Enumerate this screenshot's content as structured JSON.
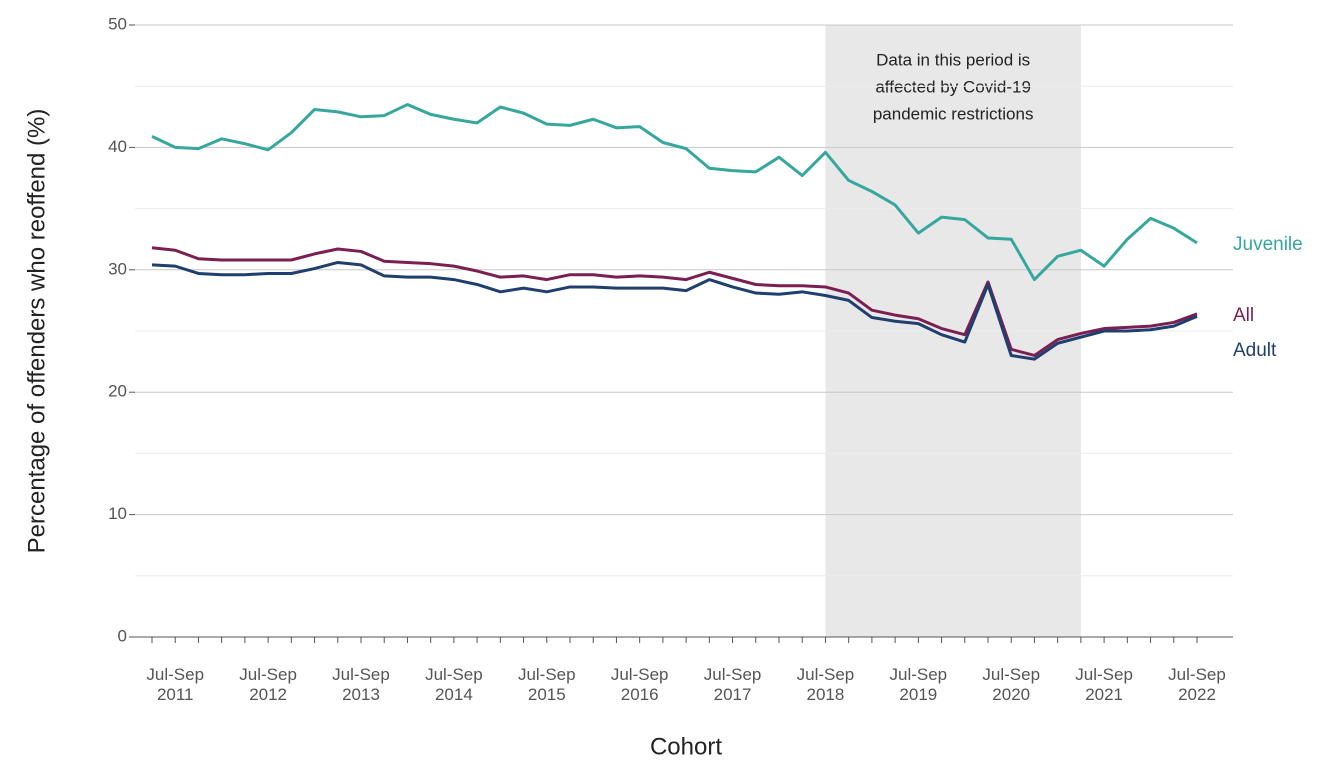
{
  "chart_data": {
    "type": "line",
    "categories": [
      null,
      "Jul-Sep 2011",
      null,
      null,
      null,
      "Jul-Sep 2012",
      null,
      null,
      null,
      "Jul-Sep 2013",
      null,
      null,
      null,
      "Jul-Sep 2014",
      null,
      null,
      null,
      "Jul-Sep 2015",
      null,
      null,
      null,
      "Jul-Sep 2016",
      null,
      null,
      null,
      "Jul-Sep 2017",
      null,
      null,
      null,
      "Jul-Sep 2018",
      null,
      null,
      null,
      "Jul-Sep 2019",
      null,
      null,
      null,
      "Jul-Sep 2020",
      null,
      null,
      null,
      "Jul-Sep 2021",
      null,
      null,
      null,
      "Jul-Sep 2022"
    ],
    "series": [
      {
        "name": "Juvenile",
        "color": "#35a79c",
        "values": [
          40.9,
          40.0,
          39.9,
          40.7,
          40.3,
          39.8,
          41.2,
          43.1,
          42.9,
          42.5,
          42.6,
          43.5,
          42.7,
          42.3,
          42.0,
          43.3,
          42.8,
          41.9,
          41.8,
          42.3,
          41.6,
          41.7,
          40.4,
          39.9,
          38.3,
          38.1,
          38.0,
          39.2,
          37.7,
          39.6,
          37.3,
          36.4,
          35.3,
          33.0,
          34.3,
          34.1,
          32.6,
          32.5,
          29.2,
          31.1,
          31.6,
          30.3,
          32.5,
          34.2,
          33.4,
          32.2
        ]
      },
      {
        "name": "All",
        "color": "#7b1f52",
        "values": [
          31.8,
          31.6,
          30.9,
          30.8,
          30.8,
          30.8,
          30.8,
          31.3,
          31.7,
          31.5,
          30.7,
          30.6,
          30.5,
          30.3,
          29.9,
          29.4,
          29.5,
          29.2,
          29.6,
          29.6,
          29.4,
          29.5,
          29.4,
          29.2,
          29.8,
          29.3,
          28.8,
          28.7,
          28.7,
          28.6,
          28.1,
          26.7,
          26.3,
          26.0,
          25.2,
          24.7,
          29.0,
          23.5,
          23.0,
          24.3,
          24.8,
          25.2,
          25.3,
          25.4,
          25.7,
          26.4
        ]
      },
      {
        "name": "Adult",
        "color": "#1f3f6e",
        "values": [
          30.4,
          30.3,
          29.7,
          29.6,
          29.6,
          29.7,
          29.7,
          30.1,
          30.6,
          30.4,
          29.5,
          29.4,
          29.4,
          29.2,
          28.8,
          28.2,
          28.5,
          28.2,
          28.6,
          28.6,
          28.5,
          28.5,
          28.5,
          28.3,
          29.2,
          28.6,
          28.1,
          28.0,
          28.2,
          27.9,
          27.5,
          26.1,
          25.8,
          25.6,
          24.7,
          24.1,
          28.8,
          23.0,
          22.7,
          24.0,
          24.5,
          25.0,
          25.0,
          25.1,
          25.4,
          26.2
        ]
      }
    ],
    "ylim": [
      0,
      50
    ],
    "yticks": [
      0,
      10,
      20,
      30,
      40,
      50
    ],
    "y_minor_ticks": [
      5,
      15,
      25,
      35,
      45
    ],
    "grid": true,
    "y_label": "Percentage of offenders who reoffend (%)",
    "x_label": "Cohort",
    "shaded_region": {
      "start": 29,
      "end": 40,
      "color": "#e8e8e8",
      "annotation": [
        "Data in this period is",
        "affected by Covid-19",
        "pandemic restrictions"
      ]
    }
  }
}
